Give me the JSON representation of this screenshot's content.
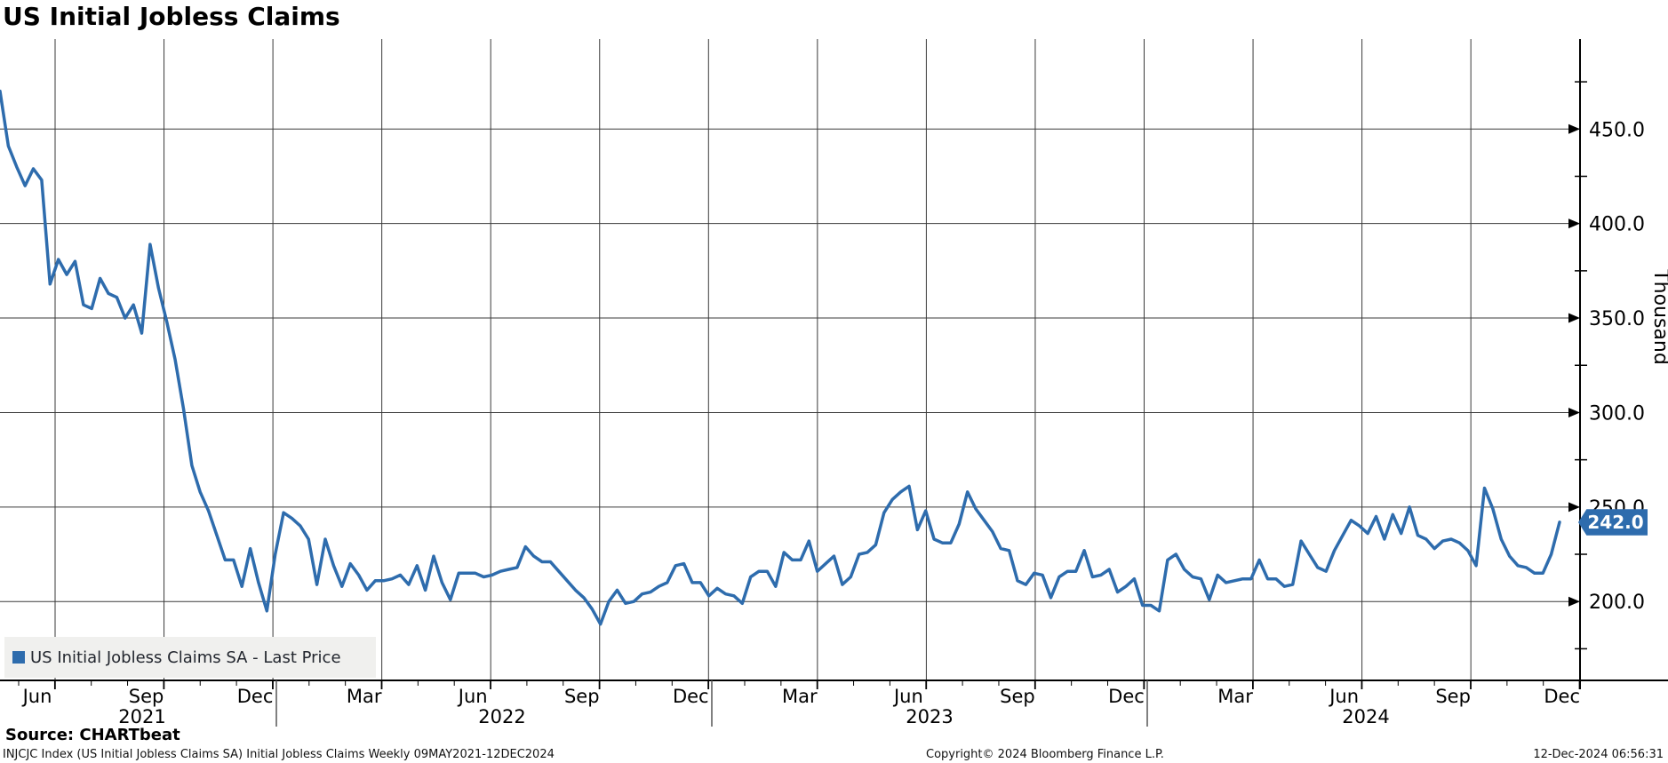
{
  "header": {
    "title": "US Initial Jobless Claims"
  },
  "legend": {
    "label": "US Initial Jobless Claims SA - Last Price",
    "swatch_color": "#2e6cad"
  },
  "last_price": {
    "value": "242.0",
    "box_color": "#2e6cad"
  },
  "footer": {
    "source": "Source: CHARTbeat",
    "description": "INJCJC Index (US Initial Jobless Claims SA) Initial Jobless Claims  Weekly 09MAY2021-12DEC2024",
    "copyright": "Copyright© 2024 Bloomberg Finance L.P.",
    "timestamp": "12-Dec-2024 06:56:31"
  },
  "chart_data": {
    "type": "line",
    "title": "US Initial Jobless Claims",
    "series_name": "US Initial Jobless Claims SA - Last Price",
    "frequency": "Weekly",
    "range": "09MAY2021-12DEC2024",
    "ylabel": "Thousand",
    "xlabel": "",
    "ylim": [
      155,
      495
    ],
    "grid": true,
    "legend_position": "bottom-left",
    "line_color": "#2e6cad",
    "last_value": 242.0,
    "y_axis": {
      "major_ticks": [
        200,
        250,
        300,
        350,
        400,
        450
      ],
      "major_tick_labels": [
        "200.0",
        "250.0",
        "300.0",
        "350.0",
        "400.0",
        "450.0"
      ],
      "minor_ticks": [
        175,
        225,
        275,
        325,
        375,
        425,
        475
      ]
    },
    "x_axis": {
      "month_tick_labels": [
        "Jun",
        "Sep",
        "Dec",
        "Mar",
        "Jun",
        "Sep",
        "Dec",
        "Mar",
        "Jun",
        "Sep",
        "Dec",
        "Mar",
        "Jun",
        "Sep",
        "Dec"
      ],
      "year_labels": [
        "2021",
        "2022",
        "2023",
        "2024"
      ]
    },
    "values": [
      470,
      441,
      430,
      420,
      429,
      423,
      368,
      381,
      373,
      380,
      357,
      355,
      371,
      363,
      361,
      350,
      357,
      342,
      389,
      366,
      348,
      328,
      302,
      272,
      258,
      248,
      235,
      222,
      222,
      208,
      228,
      210,
      195,
      225,
      247,
      244,
      240,
      233,
      209,
      233,
      219,
      208,
      220,
      214,
      206,
      211,
      211,
      212,
      214,
      209,
      219,
      206,
      224,
      210,
      201,
      215,
      215,
      215,
      213,
      214,
      216,
      217,
      218,
      229,
      224,
      221,
      221,
      216,
      211,
      206,
      202,
      196,
      188,
      200,
      206,
      199,
      200,
      204,
      205,
      208,
      210,
      219,
      220,
      210,
      210,
      203,
      207,
      204,
      203,
      199,
      213,
      216,
      216,
      208,
      226,
      222,
      222,
      232,
      216,
      220,
      224,
      209,
      213,
      225,
      226,
      230,
      247,
      254,
      258,
      261,
      238,
      248,
      233,
      231,
      231,
      241,
      258,
      249,
      243,
      237,
      228,
      227,
      211,
      209,
      215,
      214,
      202,
      213,
      216,
      216,
      227,
      213,
      214,
      217,
      205,
      208,
      212,
      198,
      198,
      195,
      222,
      225,
      217,
      213,
      212,
      201,
      214,
      210,
      211,
      212,
      212,
      222,
      212,
      212,
      208,
      209,
      232,
      225,
      218,
      216,
      227,
      235,
      243,
      240,
      236,
      245,
      233,
      246,
      236,
      250,
      235,
      233,
      228,
      232,
      233,
      231,
      227,
      219,
      260,
      249,
      233,
      224,
      219,
      218,
      215,
      215,
      225,
      242
    ]
  }
}
